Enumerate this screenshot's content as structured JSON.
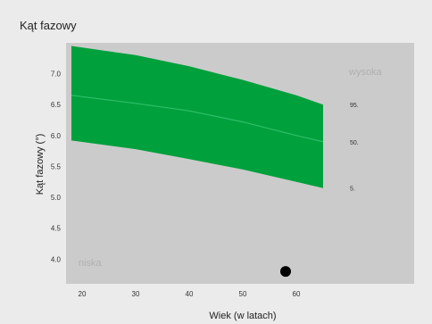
{
  "chart_data": {
    "type": "area",
    "title": "Kąt fazowy",
    "xlabel": "Wiek (w latach)",
    "ylabel": "Kąt fazowy (°)",
    "xlim": [
      17,
      82
    ],
    "ylim": [
      3.6,
      7.5
    ],
    "x_ticks": [
      20,
      30,
      40,
      50,
      60
    ],
    "y_ticks": [
      4.0,
      4.5,
      5.0,
      5.5,
      6.0,
      6.5,
      7.0
    ],
    "x_tick_labels": [
      "20",
      "30",
      "40",
      "50",
      "60"
    ],
    "y_tick_labels": [
      "4.0",
      "4.5",
      "5.0",
      "5.5",
      "6.0",
      "6.5",
      "7.0"
    ],
    "band": {
      "x": [
        18,
        30,
        40,
        50,
        60,
        65
      ],
      "upper": [
        7.45,
        7.3,
        7.12,
        6.9,
        6.65,
        6.5
      ],
      "lower": [
        5.92,
        5.78,
        5.62,
        5.45,
        5.25,
        5.15
      ]
    },
    "median": {
      "x": [
        18,
        30,
        40,
        50,
        60,
        65
      ],
      "y": [
        6.65,
        6.52,
        6.4,
        6.22,
        6.0,
        5.9
      ]
    },
    "percentile_labels": [
      "95.",
      "50.",
      "5."
    ],
    "zone_labels": {
      "high": "wysoka",
      "low": "niska"
    },
    "point": {
      "x": 58,
      "y": 3.8
    },
    "colors": {
      "band": "#00a03c",
      "median": "#2fbf6a",
      "plot_bg": "#cbcbcb",
      "outer_bg": "#ebebeb",
      "point": "#000000"
    },
    "grid": false
  }
}
